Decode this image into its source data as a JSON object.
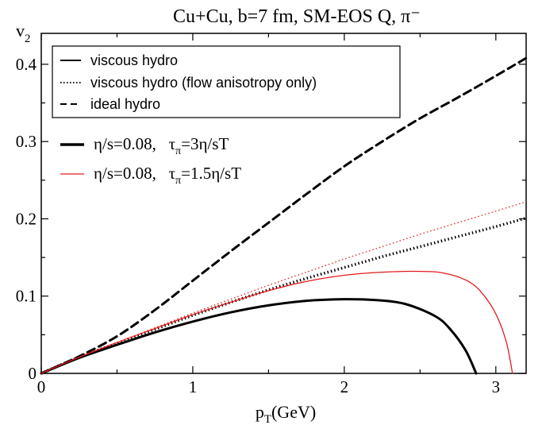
{
  "chart_data": {
    "type": "line",
    "title": "Cu+Cu, b=7 fm, SM-EOS Q, π⁻",
    "xlabel": "p",
    "xlabel_sub": "T",
    "xlabel_unit": "(GeV)",
    "ylabel": "v",
    "ylabel_sub": "2",
    "xlim": [
      0,
      3.2
    ],
    "ylim": [
      0,
      0.44
    ],
    "xticks": [
      0,
      1,
      2,
      3
    ],
    "xtick_labels": [
      "0",
      "1",
      "2",
      "3"
    ],
    "yticks": [
      0,
      0.1,
      0.2,
      0.3,
      0.4
    ],
    "ytick_labels": [
      "0",
      "0.1",
      "0.2",
      "0.3",
      "0.4"
    ],
    "legend_style": {
      "placement": "top-left",
      "entries": [
        {
          "label": "viscous hydro",
          "dash": "solid"
        },
        {
          "label": "viscous hydro (flow anisotropy only)",
          "dash": "dotted"
        },
        {
          "label": "ideal hydro",
          "dash": "dashed"
        }
      ]
    },
    "legend_params": [
      {
        "label": "η/s=0.08,   τ",
        "sub": "π",
        "suffix": "=3η/sT",
        "color": "#000000",
        "width": "thick"
      },
      {
        "label": "η/s=0.08,   τ",
        "sub": "π",
        "suffix": "=1.5η/sT",
        "color": "#e41a1c",
        "width": "thin"
      }
    ],
    "series": [
      {
        "style": "ideal hydro",
        "color": "#000000",
        "dash": "dashed",
        "width": "thick",
        "x": [
          0,
          0.25,
          0.5,
          0.75,
          1.0,
          1.25,
          1.5,
          1.75,
          2.0,
          2.25,
          2.5,
          2.75,
          3.0,
          3.2
        ],
        "y": [
          0,
          0.022,
          0.048,
          0.082,
          0.12,
          0.158,
          0.195,
          0.232,
          0.268,
          0.3,
          0.33,
          0.357,
          0.385,
          0.408
        ]
      },
      {
        "style": "viscous hydro (flow anisotropy only), τπ=3η/sT",
        "color": "#000000",
        "dash": "dotted",
        "width": "thick",
        "x": [
          0,
          0.25,
          0.5,
          0.75,
          1.0,
          1.25,
          1.5,
          1.75,
          2.0,
          2.25,
          2.5,
          2.75,
          3.0,
          3.2
        ],
        "y": [
          0,
          0.021,
          0.039,
          0.057,
          0.075,
          0.092,
          0.108,
          0.123,
          0.137,
          0.151,
          0.164,
          0.177,
          0.19,
          0.201
        ]
      },
      {
        "style": "viscous hydro (flow anisotropy only), τπ=1.5η/sT",
        "color": "#e41a1c",
        "dash": "dotted",
        "width": "thin",
        "x": [
          0,
          0.25,
          0.5,
          0.75,
          1.0,
          1.25,
          1.5,
          1.75,
          2.0,
          2.25,
          2.5,
          2.75,
          3.0,
          3.2
        ],
        "y": [
          0,
          0.021,
          0.04,
          0.059,
          0.078,
          0.096,
          0.114,
          0.131,
          0.148,
          0.164,
          0.18,
          0.195,
          0.21,
          0.222
        ]
      },
      {
        "style": "viscous hydro, τπ=3η/sT",
        "color": "#000000",
        "dash": "solid",
        "width": "thick",
        "x": [
          0,
          0.25,
          0.5,
          0.75,
          1.0,
          1.25,
          1.5,
          1.75,
          2.0,
          2.2,
          2.4,
          2.6,
          2.7,
          2.8,
          2.87
        ],
        "y": [
          0,
          0.02,
          0.037,
          0.053,
          0.067,
          0.079,
          0.088,
          0.094,
          0.096,
          0.095,
          0.09,
          0.074,
          0.057,
          0.03,
          0.0
        ]
      },
      {
        "style": "viscous hydro, τπ=1.5η/sT",
        "color": "#e41a1c",
        "dash": "solid",
        "width": "thin",
        "x": [
          0,
          0.25,
          0.5,
          0.75,
          1.0,
          1.25,
          1.5,
          1.75,
          2.0,
          2.25,
          2.5,
          2.65,
          2.8,
          2.9,
          3.0,
          3.07,
          3.11
        ],
        "y": [
          0,
          0.021,
          0.04,
          0.058,
          0.076,
          0.092,
          0.107,
          0.119,
          0.127,
          0.131,
          0.132,
          0.13,
          0.121,
          0.106,
          0.077,
          0.04,
          0.0
        ]
      }
    ]
  }
}
